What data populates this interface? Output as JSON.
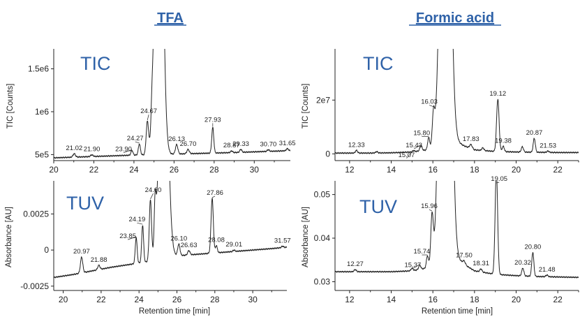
{
  "column_titles": {
    "left": "TFA",
    "right": "Formic acid"
  },
  "chart_data": [
    {
      "type": "line",
      "panel": "TFA-TIC",
      "label": "TIC",
      "ylabel": "TIC [Counts]",
      "xlabel": "",
      "xlim": [
        20,
        31.8
      ],
      "ylim": [
        430000,
        1700000
      ],
      "xticks": [
        20,
        22,
        24,
        26,
        28,
        30
      ],
      "yticks": [
        {
          "v": 500000,
          "t": "5e5"
        },
        {
          "v": 1000000,
          "t": "1e6"
        },
        {
          "v": 1500000,
          "t": "1.5e6"
        }
      ],
      "baseline": [
        [
          20,
          462000
        ],
        [
          21,
          470000
        ],
        [
          22,
          478000
        ],
        [
          23,
          486000
        ],
        [
          24,
          494000
        ],
        [
          25,
          500000
        ],
        [
          26,
          506000
        ],
        [
          27,
          512000
        ],
        [
          28,
          518000
        ],
        [
          29,
          524000
        ],
        [
          30,
          532000
        ],
        [
          31,
          540000
        ],
        [
          31.8,
          546000
        ]
      ],
      "peaks": [
        {
          "rt": 21.02,
          "label": "21.02",
          "h": 40000,
          "w": 0.06
        },
        {
          "rt": 21.9,
          "label": "21.90",
          "h": 20000,
          "w": 0.06
        },
        {
          "rt": 23.9,
          "label": "23.90",
          "h": 55000,
          "w": 0.05
        },
        {
          "rt": 24.27,
          "label": "24.27",
          "h": 130000,
          "w": 0.05
        },
        {
          "rt": 24.67,
          "label": "24.67",
          "h": 380000,
          "w": 0.06
        },
        {
          "rt": 24.9,
          "label": "",
          "h": 250000,
          "w": 0.05
        },
        {
          "rt": 25.25,
          "label": "",
          "h": 5000000,
          "w": 0.17
        },
        {
          "rt": 26.13,
          "label": "26.13",
          "h": 110000,
          "w": 0.06
        },
        {
          "rt": 26.7,
          "label": "26.70",
          "h": 50000,
          "w": 0.06
        },
        {
          "rt": 27.93,
          "label": "27.93",
          "h": 300000,
          "w": 0.05
        },
        {
          "rt": 28.87,
          "label": "28.87",
          "h": 20000,
          "w": 0.05
        },
        {
          "rt": 29.33,
          "label": "29.33",
          "h": 35000,
          "w": 0.05
        },
        {
          "rt": 30.7,
          "label": "30.70",
          "h": 20000,
          "w": 0.05
        },
        {
          "rt": 31.65,
          "label": "31.65",
          "h": 25000,
          "w": 0.05
        }
      ]
    },
    {
      "type": "line",
      "panel": "TFA-TUV",
      "label": "TUV",
      "ylabel": "Absorbance [AU]",
      "xlabel": "Retention time [min]",
      "xlim": [
        19.5,
        31.8
      ],
      "ylim": [
        -0.0028,
        0.0046
      ],
      "xticks": [
        20,
        22,
        24,
        26,
        28,
        30
      ],
      "yticks": [
        {
          "v": -0.0025,
          "t": "-0.0025"
        },
        {
          "v": 0,
          "t": "0"
        },
        {
          "v": 0.0025,
          "t": "0.0025"
        }
      ],
      "baseline": [
        [
          19.5,
          -0.0019
        ],
        [
          20.5,
          -0.0017
        ],
        [
          21.5,
          -0.00145
        ],
        [
          22.5,
          -0.0012
        ],
        [
          23.5,
          -0.001
        ],
        [
          24.5,
          -0.0008
        ],
        [
          25,
          -0.0006
        ],
        [
          26,
          -0.0004
        ],
        [
          27,
          -0.0003
        ],
        [
          28,
          -0.0002
        ],
        [
          29,
          -0.0001
        ],
        [
          30,
          0.0
        ],
        [
          31,
          0.0001
        ],
        [
          31.8,
          0.0002
        ]
      ],
      "peaks": [
        {
          "rt": 20.97,
          "label": "20.97",
          "h": 0.0011,
          "w": 0.06
        },
        {
          "rt": 21.88,
          "label": "21.88",
          "h": 0.0003,
          "w": 0.06
        },
        {
          "rt": 23.85,
          "label": "23.85",
          "h": 0.0018,
          "w": 0.05
        },
        {
          "rt": 24.19,
          "label": "24.19",
          "h": 0.0026,
          "w": 0.05
        },
        {
          "rt": 24.6,
          "label": "24.60",
          "h": 0.0042,
          "w": 0.06
        },
        {
          "rt": 24.85,
          "label": "",
          "h": 0.0032,
          "w": 0.05
        },
        {
          "rt": 25.3,
          "label": "",
          "h": 0.02,
          "w": 0.2
        },
        {
          "rt": 26.1,
          "label": "26.10",
          "h": 0.0008,
          "w": 0.06
        },
        {
          "rt": 26.63,
          "label": "26.63",
          "h": 0.0003,
          "w": 0.06
        },
        {
          "rt": 27.86,
          "label": "27.86",
          "h": 0.0038,
          "w": 0.06
        },
        {
          "rt": 28.08,
          "label": "28.08",
          "h": 0.0005,
          "w": 0.05
        },
        {
          "rt": 29.01,
          "label": "29.01",
          "h": 0.0001,
          "w": 0.05
        },
        {
          "rt": 31.57,
          "label": "31.57",
          "h": 0.0001,
          "w": 0.05
        }
      ]
    },
    {
      "type": "line",
      "panel": "FA-TIC",
      "label": "TIC",
      "ylabel": "TIC [Counts]",
      "xlabel": "",
      "xlim": [
        11.3,
        23
      ],
      "ylim": [
        -2500000,
        38000000
      ],
      "xticks": [
        12,
        14,
        16,
        18,
        20,
        22
      ],
      "yticks": [
        {
          "v": 0,
          "t": "0"
        },
        {
          "v": 20000000,
          "t": "2e7"
        }
      ],
      "baseline": [
        [
          11.3,
          300000
        ],
        [
          13,
          300000
        ],
        [
          14,
          400000
        ],
        [
          15,
          700000
        ],
        [
          16,
          1800000
        ],
        [
          16.5,
          3000000
        ],
        [
          17,
          5000000
        ],
        [
          17.5,
          3000000
        ],
        [
          18,
          1500000
        ],
        [
          19,
          900000
        ],
        [
          20,
          700000
        ],
        [
          21,
          600000
        ],
        [
          22,
          500000
        ],
        [
          23,
          500000
        ]
      ],
      "peaks": [
        {
          "rt": 12.33,
          "label": "12.33",
          "h": 1000000,
          "w": 0.05
        },
        {
          "rt": 13.3,
          "label": "",
          "h": 500000,
          "w": 0.05
        },
        {
          "rt": 15.07,
          "label": "15.07",
          "h": 400000,
          "w": 0.05
        },
        {
          "rt": 15.43,
          "label": "15.43",
          "h": 2000000,
          "w": 0.05
        },
        {
          "rt": 15.8,
          "label": "15.80",
          "h": 4500000,
          "w": 0.05
        },
        {
          "rt": 16.03,
          "label": "16.03",
          "h": 12000000,
          "w": 0.06
        },
        {
          "rt": 16.6,
          "label": "",
          "h": 200000000,
          "w": 0.2
        },
        {
          "rt": 17.83,
          "label": "17.83",
          "h": 1500000,
          "w": 0.06
        },
        {
          "rt": 18.4,
          "label": "",
          "h": 1000000,
          "w": 0.05
        },
        {
          "rt": 19.12,
          "label": "19.12",
          "h": 19500000,
          "w": 0.06
        },
        {
          "rt": 19.38,
          "label": "19.38",
          "h": 2000000,
          "w": 0.05
        },
        {
          "rt": 20.3,
          "label": "",
          "h": 2000000,
          "w": 0.05
        },
        {
          "rt": 20.87,
          "label": "20.87",
          "h": 5200000,
          "w": 0.05
        },
        {
          "rt": 21.53,
          "label": "21.53",
          "h": 500000,
          "w": 0.05
        }
      ]
    },
    {
      "type": "line",
      "panel": "FA-TUV",
      "label": "TUV",
      "ylabel": "Absorbance [AU]",
      "xlabel": "Retention time [min]",
      "xlim": [
        11.3,
        23
      ],
      "ylim": [
        0.028,
        0.0525
      ],
      "xticks": [
        12,
        14,
        16,
        18,
        20,
        22
      ],
      "yticks": [
        {
          "v": 0.03,
          "t": "0.03"
        },
        {
          "v": 0.04,
          "t": "0.04"
        },
        {
          "v": 0.05,
          "t": "0.05"
        }
      ],
      "baseline": [
        [
          11.3,
          0.0323
        ],
        [
          14,
          0.0323
        ],
        [
          15,
          0.0325
        ],
        [
          16,
          0.0334
        ],
        [
          16.5,
          0.035
        ],
        [
          17,
          0.036
        ],
        [
          17.5,
          0.034
        ],
        [
          18,
          0.0325
        ],
        [
          19,
          0.0317
        ],
        [
          20,
          0.0314
        ],
        [
          21,
          0.0312
        ],
        [
          22,
          0.0311
        ],
        [
          23,
          0.031
        ]
      ],
      "peaks": [
        {
          "rt": 12.27,
          "label": "12.27",
          "h": 0.0005,
          "w": 0.05
        },
        {
          "rt": 15.0,
          "label": "",
          "h": 0.0006,
          "w": 0.05
        },
        {
          "rt": 15.37,
          "label": "15.37",
          "h": 0.001,
          "w": 0.05
        },
        {
          "rt": 15.74,
          "label": "15.74",
          "h": 0.0028,
          "w": 0.05
        },
        {
          "rt": 15.96,
          "label": "15.96",
          "h": 0.0115,
          "w": 0.06
        },
        {
          "rt": 16.6,
          "label": "",
          "h": 0.2,
          "w": 0.2
        },
        {
          "rt": 17.5,
          "label": "17.50",
          "h": 0.0008,
          "w": 0.06
        },
        {
          "rt": 18.31,
          "label": "18.31",
          "h": 0.0007,
          "w": 0.05
        },
        {
          "rt": 19.05,
          "label": "19.05",
          "h": 0.024,
          "w": 0.06
        },
        {
          "rt": 20.32,
          "label": "20.32",
          "h": 0.0018,
          "w": 0.05
        },
        {
          "rt": 20.8,
          "label": "20.80",
          "h": 0.0055,
          "w": 0.05
        },
        {
          "rt": 21.48,
          "label": "21.48",
          "h": 0.0004,
          "w": 0.05
        }
      ]
    }
  ]
}
